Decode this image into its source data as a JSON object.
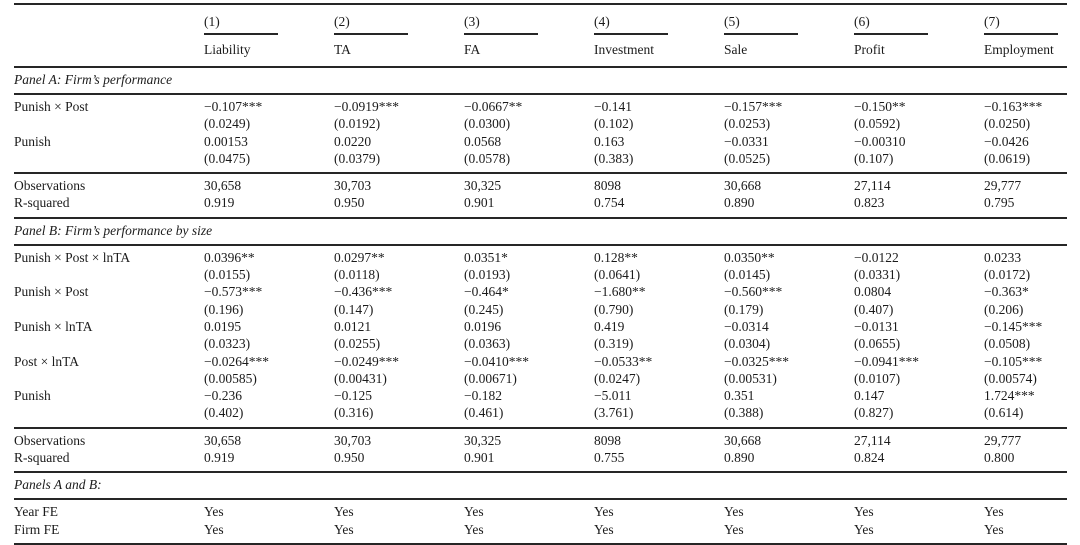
{
  "table": {
    "column_numbers": [
      "(1)",
      "(2)",
      "(3)",
      "(4)",
      "(5)",
      "(6)",
      "(7)"
    ],
    "column_names": [
      "Liability",
      "TA",
      "FA",
      "Investment",
      "Sale",
      "Profit",
      "Employment"
    ],
    "panel_a": {
      "title": "Panel A: Firm’s performance",
      "rows": [
        {
          "label": "Punish × Post",
          "values": [
            "−0.107***",
            "−0.0919***",
            "−0.0667**",
            "−0.141",
            "−0.157***",
            "−0.150**",
            "−0.163***"
          ]
        },
        {
          "label": "",
          "values": [
            "(0.0249)",
            "(0.0192)",
            "(0.0300)",
            "(0.102)",
            "(0.0253)",
            "(0.0592)",
            "(0.0250)"
          ]
        },
        {
          "label": "Punish",
          "values": [
            "0.00153",
            "0.0220",
            "0.0568",
            "0.163",
            "−0.0331",
            "−0.00310",
            "−0.0426"
          ]
        },
        {
          "label": "",
          "values": [
            "(0.0475)",
            "(0.0379)",
            "(0.0578)",
            "(0.383)",
            "(0.0525)",
            "(0.107)",
            "(0.0619)"
          ]
        }
      ],
      "stats": [
        {
          "label": "Observations",
          "values": [
            "30,658",
            "30,703",
            "30,325",
            "8098",
            "30,668",
            "27,114",
            "29,777"
          ]
        },
        {
          "label": "R-squared",
          "values": [
            "0.919",
            "0.950",
            "0.901",
            "0.754",
            "0.890",
            "0.823",
            "0.795"
          ]
        }
      ]
    },
    "panel_b": {
      "title": "Panel B: Firm’s performance by size",
      "rows": [
        {
          "label": "Punish × Post × lnTA",
          "values": [
            "0.0396**",
            "0.0297**",
            "0.0351*",
            "0.128**",
            "0.0350**",
            "−0.0122",
            "0.0233"
          ]
        },
        {
          "label": "",
          "values": [
            "(0.0155)",
            "(0.0118)",
            "(0.0193)",
            "(0.0641)",
            "(0.0145)",
            "(0.0331)",
            "(0.0172)"
          ]
        },
        {
          "label": "Punish × Post",
          "values": [
            "−0.573***",
            "−0.436***",
            "−0.464*",
            "−1.680**",
            "−0.560***",
            "0.0804",
            "−0.363*"
          ]
        },
        {
          "label": "",
          "values": [
            "(0.196)",
            "(0.147)",
            "(0.245)",
            "(0.790)",
            "(0.179)",
            "(0.407)",
            "(0.206)"
          ]
        },
        {
          "label": "Punish × lnTA",
          "values": [
            "0.0195",
            "0.0121",
            "0.0196",
            "0.419",
            "−0.0314",
            "−0.0131",
            "−0.145***"
          ]
        },
        {
          "label": "",
          "values": [
            "(0.0323)",
            "(0.0255)",
            "(0.0363)",
            "(0.319)",
            "(0.0304)",
            "(0.0655)",
            "(0.0508)"
          ]
        },
        {
          "label": "Post × lnTA",
          "values": [
            "−0.0264***",
            "−0.0249***",
            "−0.0410***",
            "−0.0533**",
            "−0.0325***",
            "−0.0941***",
            "−0.105***"
          ]
        },
        {
          "label": "",
          "values": [
            "(0.00585)",
            "(0.00431)",
            "(0.00671)",
            "(0.0247)",
            "(0.00531)",
            "(0.0107)",
            "(0.00574)"
          ]
        },
        {
          "label": "Punish",
          "values": [
            "−0.236",
            "−0.125",
            "−0.182",
            "−5.011",
            "0.351",
            "0.147",
            "1.724***"
          ]
        },
        {
          "label": "",
          "values": [
            "(0.402)",
            "(0.316)",
            "(0.461)",
            "(3.761)",
            "(0.388)",
            "(0.827)",
            "(0.614)"
          ]
        }
      ],
      "stats": [
        {
          "label": "Observations",
          "values": [
            "30,658",
            "30,703",
            "30,325",
            "8098",
            "30,668",
            "27,114",
            "29,777"
          ]
        },
        {
          "label": "R-squared",
          "values": [
            "0.919",
            "0.950",
            "0.901",
            "0.755",
            "0.890",
            "0.824",
            "0.800"
          ]
        }
      ]
    },
    "panels_ab": {
      "title": "Panels A and B:",
      "rows": [
        {
          "label": "Year FE",
          "values": [
            "Yes",
            "Yes",
            "Yes",
            "Yes",
            "Yes",
            "Yes",
            "Yes"
          ]
        },
        {
          "label": "Firm FE",
          "values": [
            "Yes",
            "Yes",
            "Yes",
            "Yes",
            "Yes",
            "Yes",
            "Yes"
          ]
        }
      ]
    }
  }
}
